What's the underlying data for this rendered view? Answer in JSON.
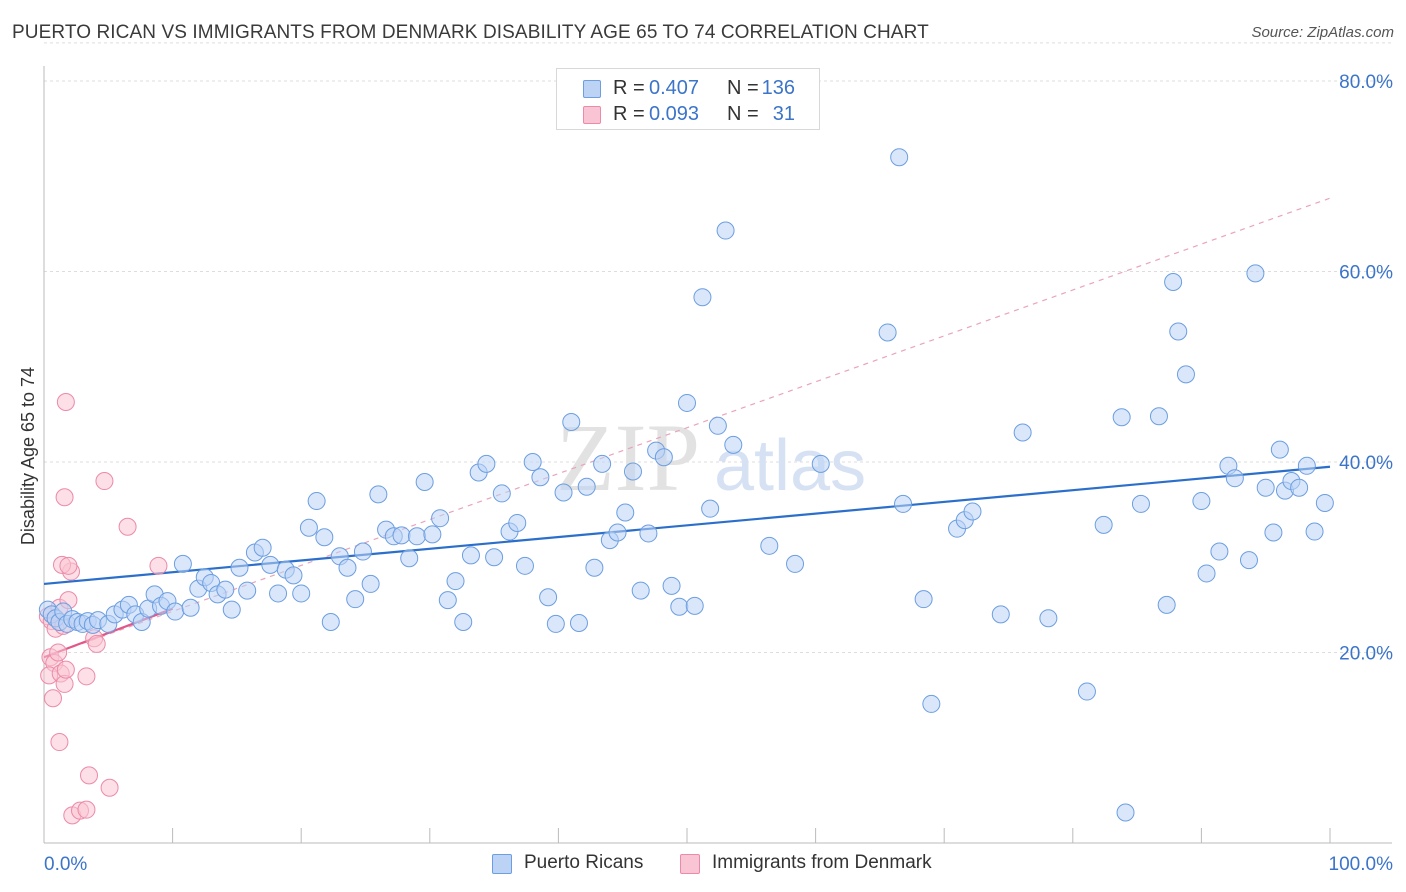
{
  "header": {
    "title": "PUERTO RICAN VS IMMIGRANTS FROM DENMARK DISABILITY AGE 65 TO 74 CORRELATION CHART",
    "source": "Source: ZipAtlas.com"
  },
  "legend": {
    "r_label": "R =",
    "n_label": "N =",
    "rows": [
      {
        "r": "0.407",
        "n": "136"
      },
      {
        "r": "0.093",
        "n": "31"
      }
    ]
  },
  "bottom_legend": {
    "items": [
      "Puerto Ricans",
      "Immigrants from Denmark"
    ]
  },
  "watermark": {
    "part1": "ZIP",
    "part2": "atlas"
  },
  "colors": {
    "blue_fill": "#bcd3f5",
    "blue_stroke": "#6c9ee0",
    "blue_line": "#2b6fcb",
    "pink_fill": "#f9c4d3",
    "pink_stroke": "#ec8aa8",
    "pink_line": "#e0588a",
    "axis_text": "#3b74c9",
    "grid": "#dddddd"
  },
  "chart_data": {
    "type": "scatter",
    "title": "PUERTO RICAN VS IMMIGRANTS FROM DENMARK DISABILITY AGE 65 TO 74 CORRELATION CHART",
    "xlabel": "",
    "ylabel": "Disability Age 65 to 74",
    "xlim": [
      0,
      100
    ],
    "ylim": [
      0,
      84
    ],
    "x_tick_labels": [
      "0.0%",
      "100.0%"
    ],
    "y_ticks": [
      20,
      40,
      60,
      80
    ],
    "y_tick_labels": [
      "20.0%",
      "40.0%",
      "60.0%",
      "80.0%"
    ],
    "grid": true,
    "legend_position": "top-center",
    "series": [
      {
        "name": "Puerto Ricans",
        "r": 0.407,
        "n": 136,
        "trend": {
          "x0": 0,
          "y0": 27.2,
          "x1": 100,
          "y1": 39.5
        },
        "points": [
          [
            0.3,
            24.5
          ],
          [
            0.6,
            24.0
          ],
          [
            0.9,
            23.6
          ],
          [
            1.2,
            23.2
          ],
          [
            1.5,
            24.3
          ],
          [
            1.8,
            23.0
          ],
          [
            2.2,
            23.5
          ],
          [
            2.6,
            23.2
          ],
          [
            3.0,
            23.0
          ],
          [
            3.4,
            23.3
          ],
          [
            3.8,
            22.9
          ],
          [
            4.2,
            23.4
          ],
          [
            5.0,
            23.0
          ],
          [
            5.5,
            24.0
          ],
          [
            6.1,
            24.5
          ],
          [
            6.6,
            25.0
          ],
          [
            7.1,
            24.0
          ],
          [
            7.6,
            23.2
          ],
          [
            8.1,
            24.6
          ],
          [
            8.6,
            26.1
          ],
          [
            9.1,
            24.9
          ],
          [
            9.6,
            25.4
          ],
          [
            10.2,
            24.3
          ],
          [
            10.8,
            29.3
          ],
          [
            11.4,
            24.7
          ],
          [
            12.0,
            26.7
          ],
          [
            12.5,
            27.9
          ],
          [
            13.0,
            27.3
          ],
          [
            13.5,
            26.1
          ],
          [
            14.1,
            26.6
          ],
          [
            14.6,
            24.5
          ],
          [
            15.2,
            28.9
          ],
          [
            15.8,
            26.5
          ],
          [
            16.4,
            30.5
          ],
          [
            17.0,
            31.0
          ],
          [
            17.6,
            29.2
          ],
          [
            18.2,
            26.2
          ],
          [
            18.8,
            28.7
          ],
          [
            19.4,
            28.1
          ],
          [
            20.0,
            26.2
          ],
          [
            20.6,
            33.1
          ],
          [
            21.2,
            35.9
          ],
          [
            21.8,
            32.1
          ],
          [
            22.3,
            23.2
          ],
          [
            23.0,
            30.1
          ],
          [
            23.6,
            28.9
          ],
          [
            24.2,
            25.6
          ],
          [
            24.8,
            30.6
          ],
          [
            25.4,
            27.2
          ],
          [
            26.0,
            36.6
          ],
          [
            26.6,
            32.9
          ],
          [
            27.2,
            32.2
          ],
          [
            27.8,
            32.3
          ],
          [
            28.4,
            29.9
          ],
          [
            29.0,
            32.2
          ],
          [
            29.6,
            37.9
          ],
          [
            30.2,
            32.4
          ],
          [
            30.8,
            34.1
          ],
          [
            31.4,
            25.5
          ],
          [
            32.0,
            27.5
          ],
          [
            32.6,
            23.2
          ],
          [
            33.2,
            30.2
          ],
          [
            33.8,
            38.9
          ],
          [
            34.4,
            39.8
          ],
          [
            35.0,
            30.0
          ],
          [
            35.6,
            36.7
          ],
          [
            36.2,
            32.7
          ],
          [
            36.8,
            33.6
          ],
          [
            37.4,
            29.1
          ],
          [
            38.0,
            40.0
          ],
          [
            38.6,
            38.4
          ],
          [
            39.2,
            25.8
          ],
          [
            39.8,
            23.0
          ],
          [
            40.4,
            36.8
          ],
          [
            41.0,
            44.2
          ],
          [
            41.6,
            23.1
          ],
          [
            42.2,
            37.4
          ],
          [
            42.8,
            28.9
          ],
          [
            43.4,
            39.8
          ],
          [
            44.0,
            31.8
          ],
          [
            44.6,
            32.6
          ],
          [
            45.2,
            34.7
          ],
          [
            45.8,
            39.0
          ],
          [
            46.4,
            26.5
          ],
          [
            47.0,
            32.5
          ],
          [
            47.6,
            41.2
          ],
          [
            48.2,
            40.5
          ],
          [
            48.8,
            27.0
          ],
          [
            49.4,
            24.8
          ],
          [
            50.0,
            46.2
          ],
          [
            50.6,
            24.9
          ],
          [
            51.2,
            57.3
          ],
          [
            51.8,
            35.1
          ],
          [
            52.4,
            43.8
          ],
          [
            53.0,
            64.3
          ],
          [
            53.6,
            41.8
          ],
          [
            56.4,
            31.2
          ],
          [
            58.4,
            29.3
          ],
          [
            60.4,
            39.8
          ],
          [
            65.6,
            53.6
          ],
          [
            66.5,
            72.0
          ],
          [
            66.8,
            35.6
          ],
          [
            68.4,
            25.6
          ],
          [
            69.0,
            14.6
          ],
          [
            71.0,
            33.0
          ],
          [
            71.6,
            33.9
          ],
          [
            72.2,
            34.8
          ],
          [
            74.4,
            24.0
          ],
          [
            76.1,
            43.1
          ],
          [
            78.1,
            23.6
          ],
          [
            81.1,
            15.9
          ],
          [
            82.4,
            33.4
          ],
          [
            83.8,
            44.7
          ],
          [
            84.1,
            3.2
          ],
          [
            85.3,
            35.6
          ],
          [
            86.7,
            44.8
          ],
          [
            87.3,
            25.0
          ],
          [
            87.8,
            58.9
          ],
          [
            88.2,
            53.7
          ],
          [
            88.8,
            49.2
          ],
          [
            90.0,
            35.9
          ],
          [
            90.4,
            28.3
          ],
          [
            91.4,
            30.6
          ],
          [
            92.1,
            39.6
          ],
          [
            92.6,
            38.3
          ],
          [
            93.7,
            29.7
          ],
          [
            94.2,
            59.8
          ],
          [
            95.0,
            37.3
          ],
          [
            95.6,
            32.6
          ],
          [
            96.1,
            41.3
          ],
          [
            96.5,
            37.0
          ],
          [
            97.0,
            38.0
          ],
          [
            97.6,
            37.3
          ],
          [
            98.2,
            39.6
          ],
          [
            98.8,
            32.7
          ],
          [
            99.6,
            35.7
          ]
        ]
      },
      {
        "name": "Immigrants from Denmark",
        "r": 0.093,
        "n": 31,
        "trend_solid": {
          "x0": 0,
          "y0": 19.5,
          "x1": 10,
          "y1": 24.6
        },
        "trend_dashed": {
          "x0": 0,
          "y0": 19.5,
          "x1": 100,
          "y1": 67.7
        },
        "points": [
          [
            0.3,
            23.8
          ],
          [
            0.6,
            23.3
          ],
          [
            0.9,
            22.5
          ],
          [
            1.2,
            24.7
          ],
          [
            1.5,
            22.8
          ],
          [
            0.5,
            19.5
          ],
          [
            0.8,
            18.9
          ],
          [
            1.1,
            20.0
          ],
          [
            0.4,
            17.6
          ],
          [
            0.7,
            15.2
          ],
          [
            1.3,
            17.8
          ],
          [
            1.6,
            16.7
          ],
          [
            1.7,
            18.2
          ],
          [
            1.2,
            10.6
          ],
          [
            1.6,
            36.3
          ],
          [
            1.7,
            46.3
          ],
          [
            1.9,
            25.5
          ],
          [
            2.1,
            28.5
          ],
          [
            1.4,
            29.2
          ],
          [
            1.9,
            29.1
          ],
          [
            3.3,
            17.5
          ],
          [
            3.5,
            7.1
          ],
          [
            3.9,
            21.5
          ],
          [
            4.1,
            20.9
          ],
          [
            4.7,
            38.0
          ],
          [
            5.1,
            5.8
          ],
          [
            6.5,
            33.2
          ],
          [
            2.2,
            2.9
          ],
          [
            2.8,
            3.4
          ],
          [
            3.3,
            3.5
          ],
          [
            8.9,
            29.1
          ]
        ]
      }
    ]
  }
}
